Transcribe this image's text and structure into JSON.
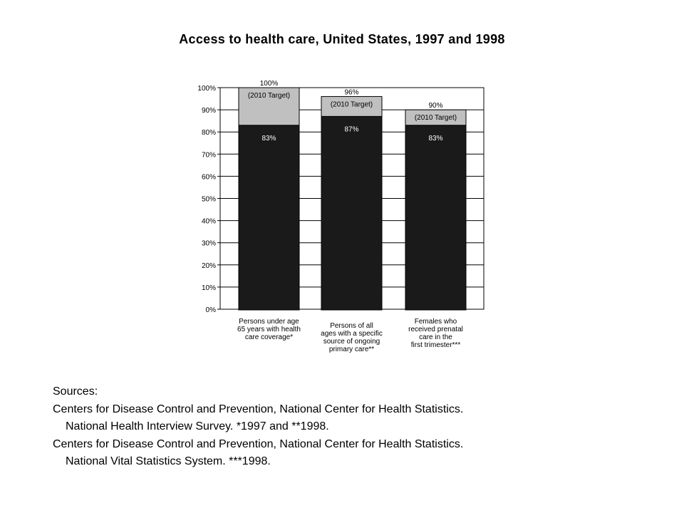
{
  "title": "Access to health care, United States, 1997 and 1998",
  "chart_data": {
    "type": "bar",
    "ylim": [
      0,
      100
    ],
    "yticks": [
      "0%",
      "10%",
      "20%",
      "30%",
      "40%",
      "50%",
      "60%",
      "70%",
      "80%",
      "90%",
      "100%"
    ],
    "grid": true,
    "bars": [
      {
        "category_lines": [
          "Persons under age",
          "65 years with health",
          "care coverage*"
        ],
        "value": 83,
        "value_label": "83%",
        "target": 100,
        "target_label": "100%",
        "target_text": "(2010 Target)"
      },
      {
        "category_lines": [
          "Persons of all",
          "ages with a specific",
          "source of ongoing",
          "primary care**"
        ],
        "value": 87,
        "value_label": "87%",
        "target": 96,
        "target_label": "96%",
        "target_text": "(2010 Target)"
      },
      {
        "category_lines": [
          "Females who",
          "received prenatal",
          "care in the",
          "first trimester***"
        ],
        "value": 83,
        "value_label": "83%",
        "target": 90,
        "target_label": "90%",
        "target_text": "(2010 Target)"
      }
    ],
    "colors": {
      "actual": "#1a1a1a",
      "target": "#c0c0c0",
      "grid": "#000000",
      "label_on_dark": "#ffffff"
    }
  },
  "sources": {
    "heading": "Sources:",
    "lines": [
      "Centers for Disease Control and Prevention, National Center for Health Statistics.",
      "National Health Interview Survey. *1997 and **1998.",
      "Centers for Disease Control and Prevention, National Center for Health Statistics.",
      "National Vital Statistics System. ***1998."
    ]
  }
}
